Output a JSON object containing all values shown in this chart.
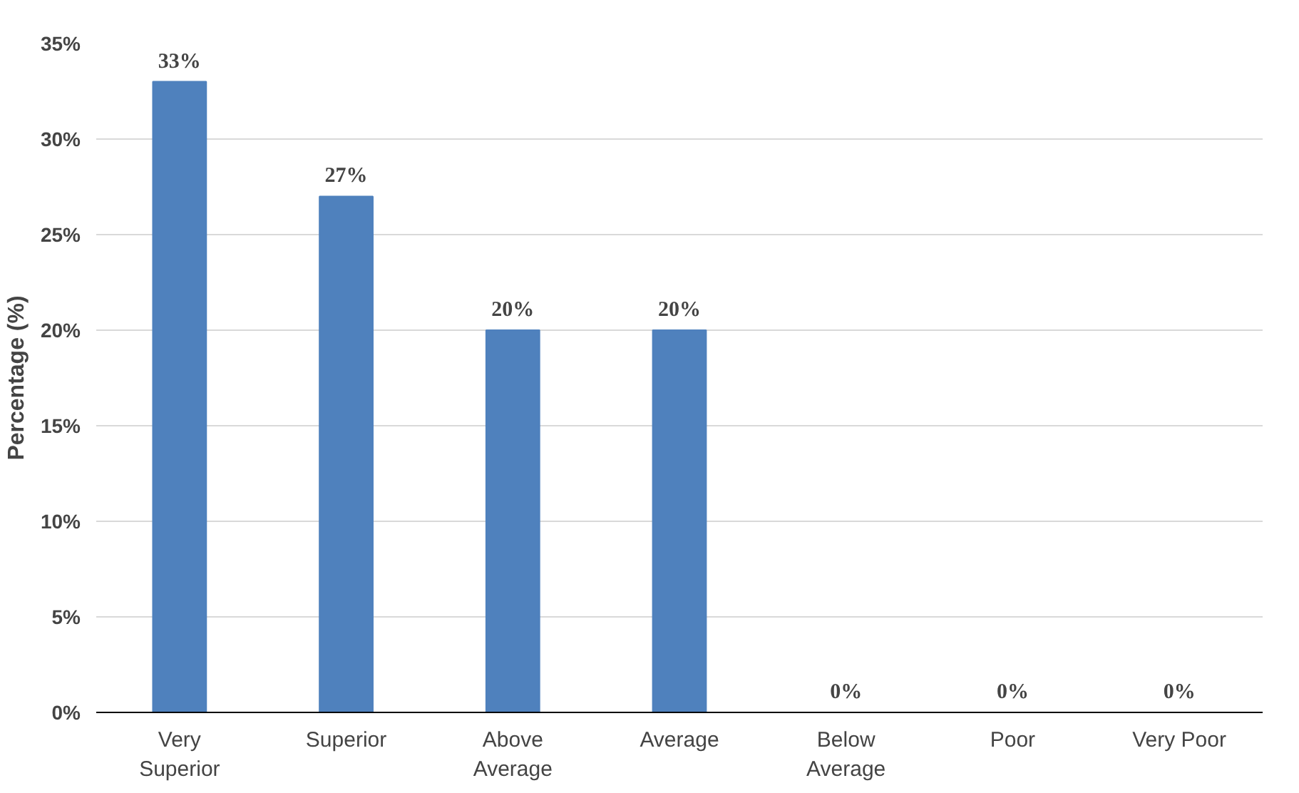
{
  "chart_data": {
    "type": "bar",
    "ylabel": "Percentage (%)",
    "categories": [
      "Very\nSuperior",
      "Superior",
      "Above\nAverage",
      "Average",
      "Below\nAverage",
      "Poor",
      "Very Poor"
    ],
    "values": [
      33,
      27,
      20,
      20,
      0,
      0,
      0
    ],
    "value_labels": [
      "33%",
      "27%",
      "20%",
      "20%",
      "0%",
      "0%",
      "0%"
    ],
    "color": "#4f81bd",
    "ylim": [
      0,
      35
    ],
    "yticks": [
      {
        "value": 0,
        "label": "0%"
      },
      {
        "value": 5,
        "label": "5%"
      },
      {
        "value": 10,
        "label": "10%"
      },
      {
        "value": 15,
        "label": "15%"
      },
      {
        "value": 20,
        "label": "20%"
      },
      {
        "value": 25,
        "label": "25%"
      },
      {
        "value": 30,
        "label": "30%"
      },
      {
        "value": 35,
        "label": "35%"
      }
    ],
    "grid": "y"
  }
}
